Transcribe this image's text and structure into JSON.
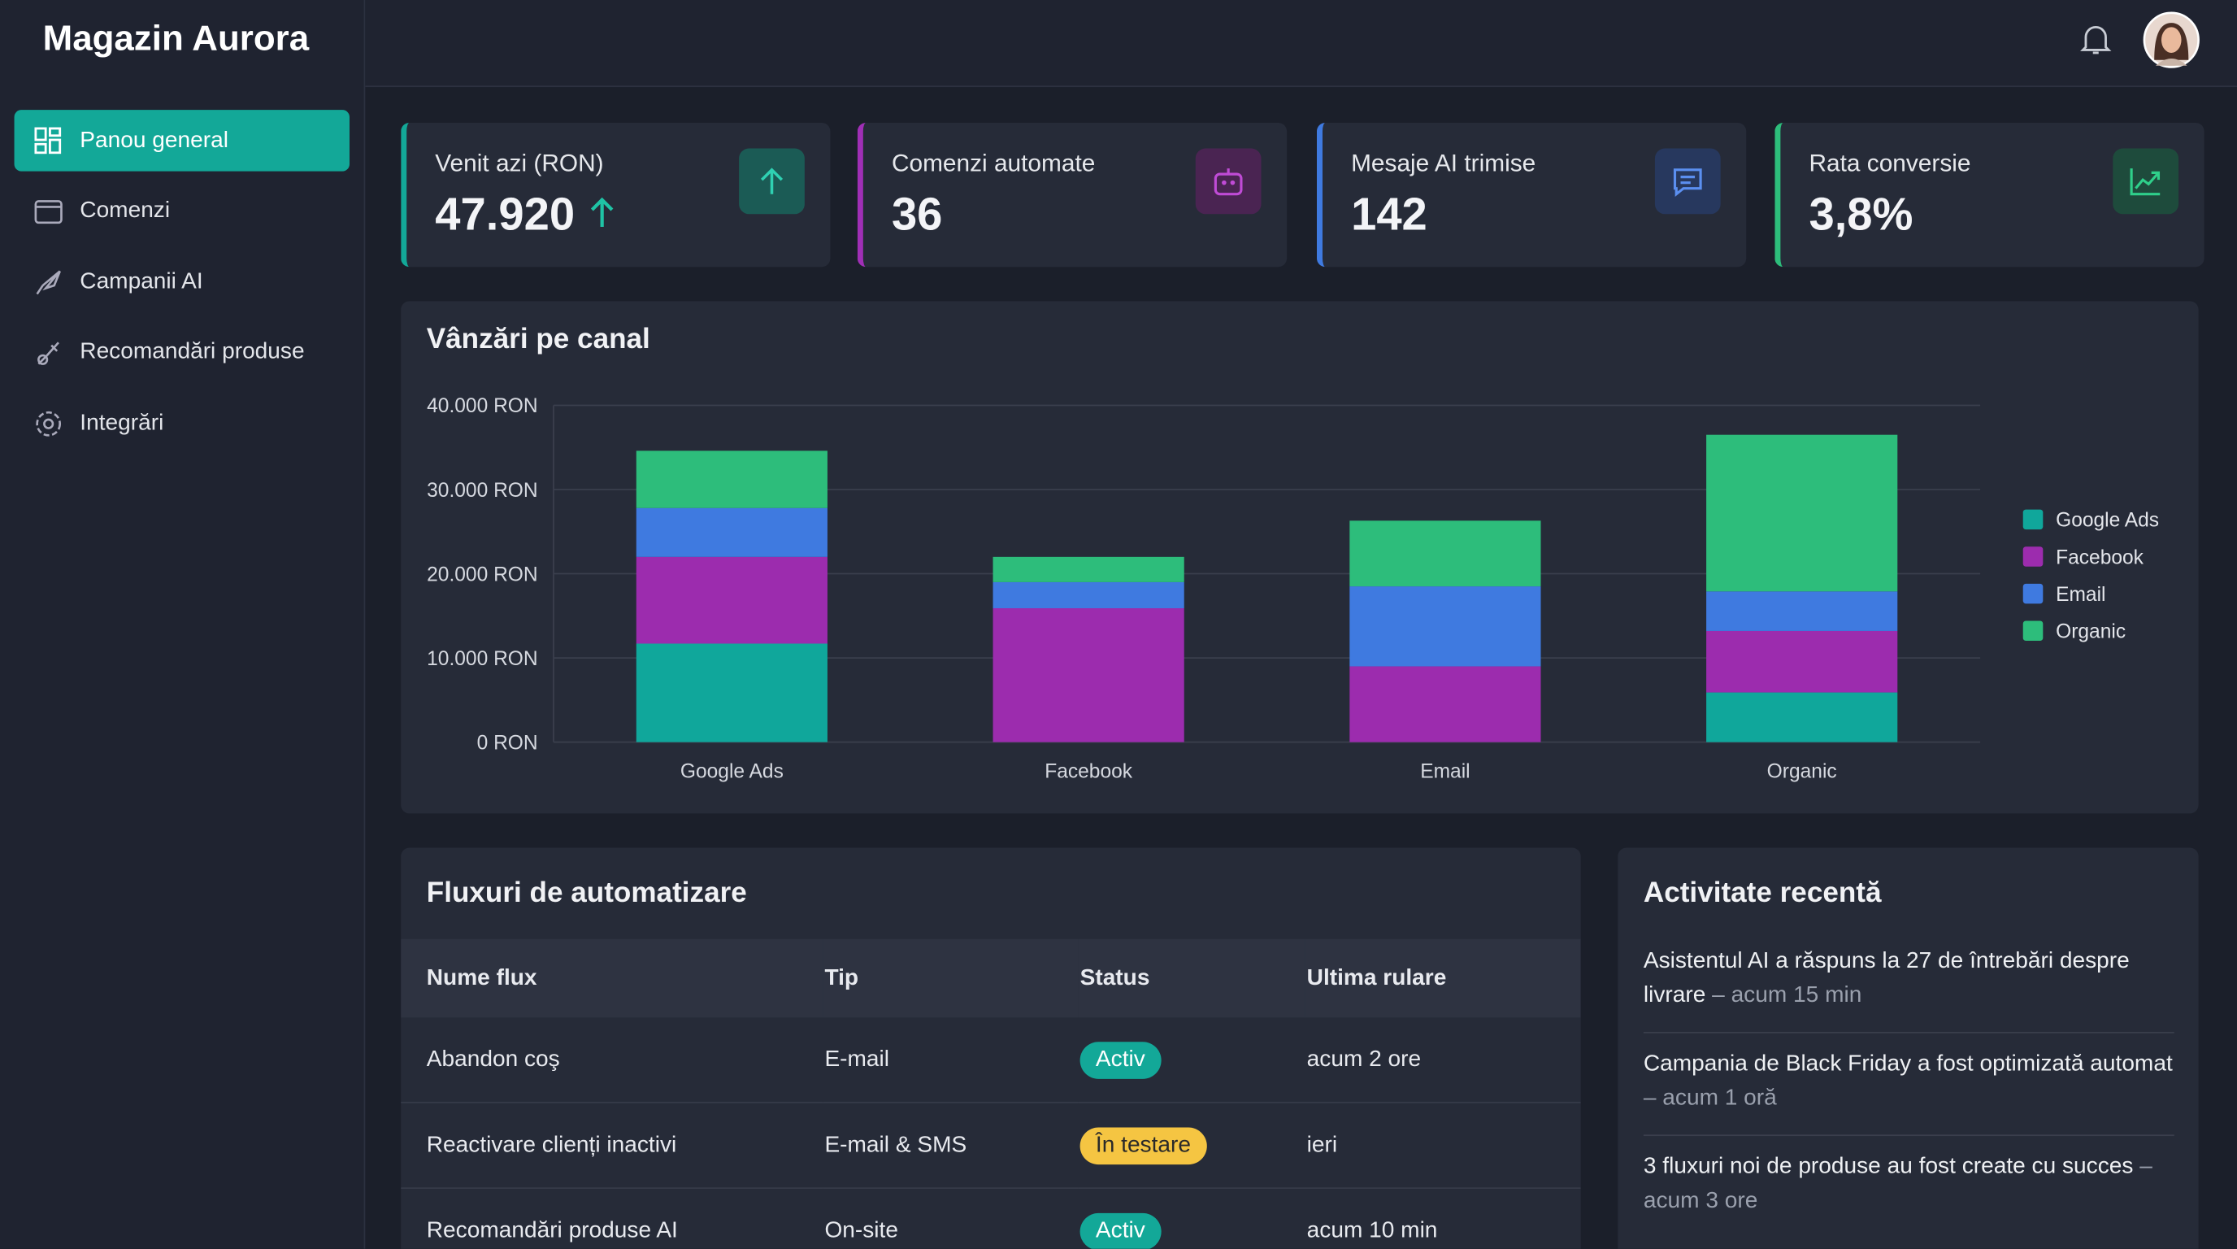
{
  "sidebar": {
    "brand": "Magazin Aurora",
    "nav": [
      "Panou general",
      "Comenzi",
      "Campanii AI",
      "Recomandări produse",
      "Integrări"
    ]
  },
  "kpis": [
    {
      "label": "Venit azi (RON)",
      "value": "47.920"
    },
    {
      "label": "Comenzi automate",
      "value": "36"
    },
    {
      "label": "Mesaje AI trimise",
      "value": "142"
    },
    {
      "label": "Rata conversie",
      "value": "3,8%"
    }
  ],
  "chart_data": {
    "type": "bar",
    "stacked": true,
    "title": "Vânzări pe canal",
    "categories": [
      "Google Ads",
      "Facebook",
      "Email",
      "Organic"
    ],
    "series": [
      {
        "name": "Google Ads",
        "color": "#10a79b",
        "values": [
          11700,
          0,
          0,
          5900
        ]
      },
      {
        "name": "Facebook",
        "color": "#9c2cae",
        "values": [
          10300,
          15900,
          9000,
          7300
        ]
      },
      {
        "name": "Email",
        "color": "#3f7ae0",
        "values": [
          5800,
          3100,
          9500,
          4700
        ]
      },
      {
        "name": "Organic",
        "color": "#2dbd7b",
        "values": [
          6800,
          3000,
          7800,
          18600
        ]
      }
    ],
    "ylim": [
      0,
      40000
    ],
    "yticks": [
      {
        "value": 0,
        "label": "0 RON"
      },
      {
        "value": 10000,
        "label": "10.000 RON"
      },
      {
        "value": 20000,
        "label": "20.000 RON"
      },
      {
        "value": 30000,
        "label": "30.000 RON"
      },
      {
        "value": 40000,
        "label": "40.000 RON"
      }
    ],
    "grid": true,
    "legend": "right"
  },
  "automations": {
    "title": "Fluxuri de automatizare",
    "columns": [
      "Nume flux",
      "Tip",
      "Status",
      "Ultima rulare"
    ],
    "rows": [
      [
        "Abandon coş",
        "E-mail",
        "Activ",
        "acum 2 ore"
      ],
      [
        "Reactivare clienți inactivi",
        "E-mail & SMS",
        "În testare",
        "ieri"
      ],
      [
        "Recomandări produse AI",
        "On-site",
        "Activ",
        "acum 10 min"
      ]
    ]
  },
  "activity": {
    "title": "Activitate recentă",
    "items": [
      {
        "text": "Asistentul AI a răspuns la 27 de întrebări despre livrare",
        "time": "– acum 15 min"
      },
      {
        "text": "Campania de Black Friday a fost optimizată automat",
        "time": "– acum 1 oră"
      },
      {
        "text": "3 fluxuri noi de produse au fost create cu succes",
        "time": "– acum 3 ore"
      }
    ]
  }
}
